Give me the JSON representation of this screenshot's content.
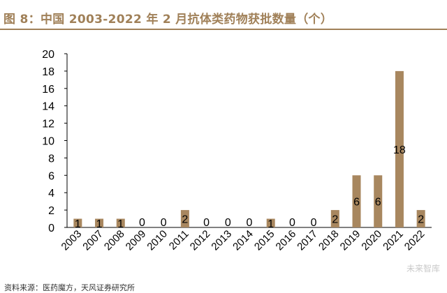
{
  "figure": {
    "title": "图 8：中国 2003-2022 年 2 月抗体类药物获批数量（个）"
  },
  "chart_data": {
    "type": "bar",
    "title": "图 8：中国 2003-2022 年 2 月抗体类药物获批数量（个）",
    "xlabel": "",
    "ylabel": "",
    "categories": [
      "2003",
      "2007",
      "2008",
      "2009",
      "2010",
      "2011",
      "2012",
      "2013",
      "2014",
      "2015",
      "2016",
      "2017",
      "2018",
      "2019",
      "2020",
      "2021",
      "2022"
    ],
    "values": [
      1,
      1,
      1,
      0,
      0,
      2,
      0,
      0,
      0,
      1,
      0,
      0,
      2,
      6,
      6,
      18,
      2
    ],
    "data_labels": [
      "1",
      "1",
      "1",
      "0",
      "0",
      "2",
      "0",
      "0",
      "0",
      "1",
      "0",
      "0",
      "2",
      "6",
      "6",
      "18",
      "2"
    ],
    "ylim": [
      0,
      20
    ],
    "yticks": [
      0,
      2,
      4,
      6,
      8,
      10,
      12,
      14,
      16,
      18,
      20
    ],
    "grid": false,
    "legend": "none",
    "bar_color": "#a8875f"
  },
  "source": {
    "text": "资料来源：医药魔方，天风证券研究所"
  },
  "watermark": {
    "text": "未来智库"
  }
}
